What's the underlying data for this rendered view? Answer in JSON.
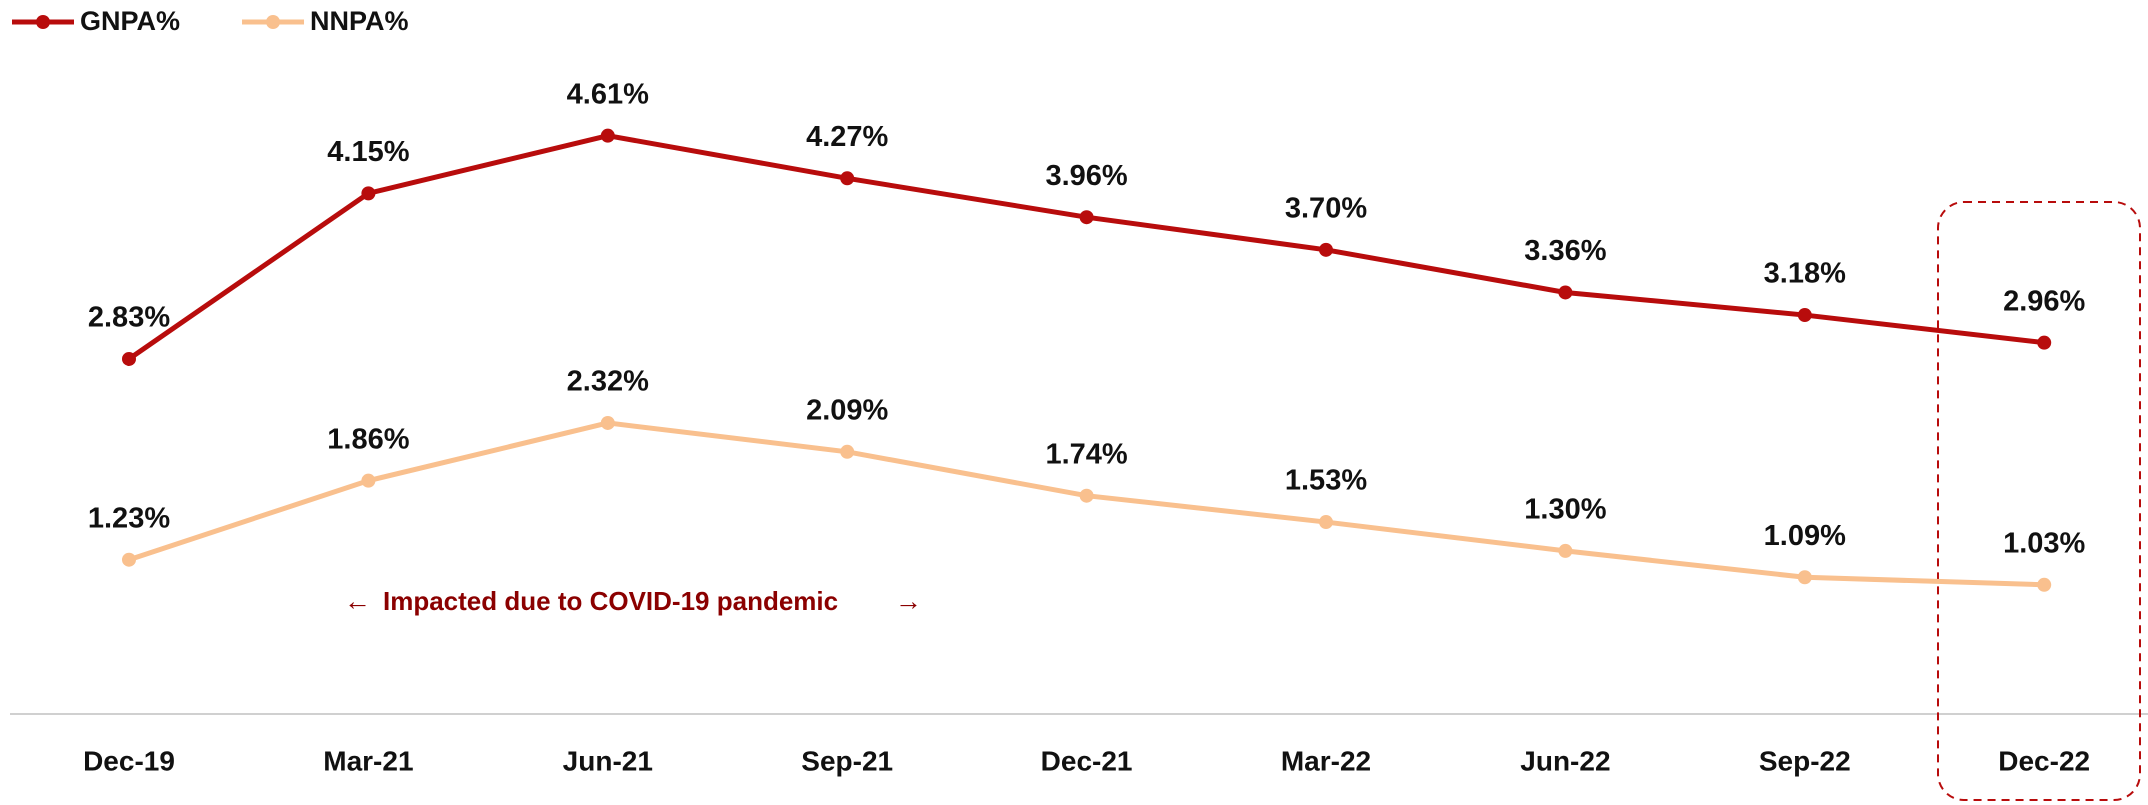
{
  "chart_data": {
    "type": "line",
    "categories": [
      "Dec-19",
      "Mar-21",
      "Jun-21",
      "Sep-21",
      "Dec-21",
      "Mar-22",
      "Jun-22",
      "Sep-22",
      "Dec-22"
    ],
    "series": [
      {
        "name": "GNPA%",
        "color": "#b80c0c",
        "values": [
          2.83,
          4.15,
          4.61,
          4.27,
          3.96,
          3.7,
          3.36,
          3.18,
          2.96
        ],
        "value_labels": [
          "2.83%",
          "4.15%",
          "4.61%",
          "4.27%",
          "3.96%",
          "3.70%",
          "3.36%",
          "3.18%",
          "2.96%"
        ]
      },
      {
        "name": "NNPA%",
        "color": "#f9c08e",
        "values": [
          1.23,
          1.86,
          2.32,
          2.09,
          1.74,
          1.53,
          1.3,
          1.09,
          1.03
        ],
        "value_labels": [
          "1.23%",
          "1.86%",
          "2.32%",
          "2.09%",
          "1.74%",
          "1.53%",
          "1.30%",
          "1.09%",
          "1.03%"
        ]
      }
    ],
    "annotation": "Impacted due to COVID-19 pandemic",
    "ylim": [
      0,
      5.5
    ],
    "legend": "top-left"
  }
}
